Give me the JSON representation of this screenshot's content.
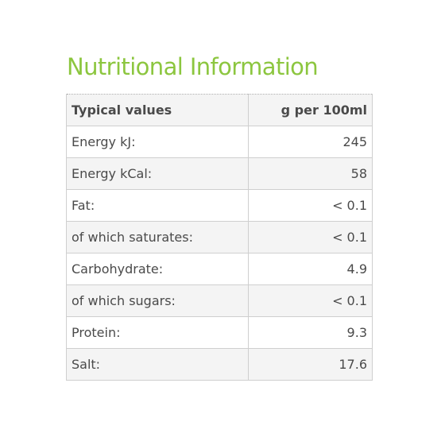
{
  "title": "Nutritional Information",
  "colors": {
    "title": "#8cc63f",
    "text": "#4a4a4a",
    "border": "#cfcfcf",
    "shaded_row": "#f4f4f4"
  },
  "table": {
    "headers": [
      "Typical values",
      "g per 100ml"
    ],
    "rows": [
      {
        "label": "Energy kJ:",
        "value": "245"
      },
      {
        "label": "Energy kCal:",
        "value": "58"
      },
      {
        "label": "Fat:",
        "value": "< 0.1"
      },
      {
        "label": "of which saturates:",
        "value": "< 0.1"
      },
      {
        "label": "Carbohydrate:",
        "value": "4.9"
      },
      {
        "label": "of which sugars:",
        "value": "< 0.1"
      },
      {
        "label": "Protein:",
        "value": "9.3"
      },
      {
        "label": "Salt:",
        "value": "17.6"
      }
    ]
  }
}
